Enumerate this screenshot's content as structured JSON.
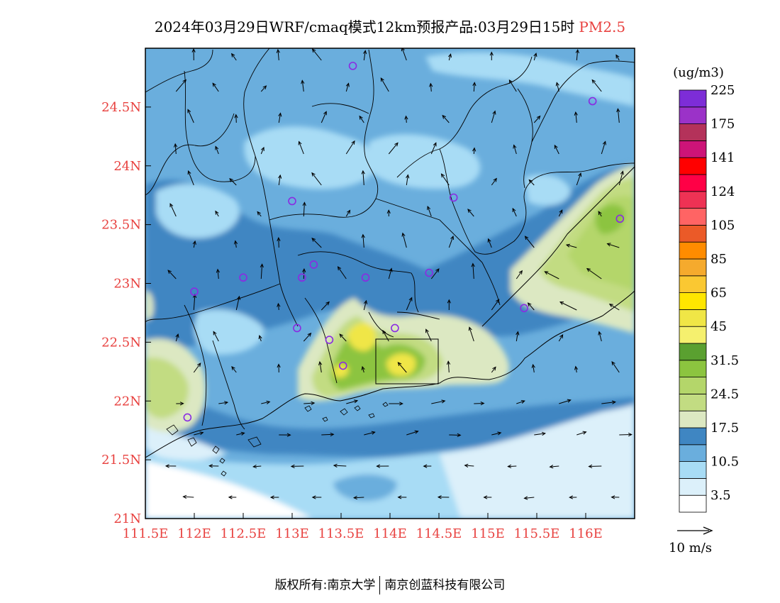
{
  "title": {
    "main": "2024年03月29日WRF/cmaq模式12km预报产品:03月29日15时",
    "pollutant": "PM2.5"
  },
  "footer": {
    "left": "版权所有:南京大学",
    "right": "南京创蓝科技有限公司"
  },
  "map": {
    "lon_range": [
      111.5,
      116.5
    ],
    "lat_range": [
      21,
      25
    ],
    "lon_ticks": [
      "111.5E",
      "112E",
      "112.5E",
      "113E",
      "113.5E",
      "114E",
      "114.5E",
      "115E",
      "115.5E",
      "116E"
    ],
    "lat_ticks": [
      "21N",
      "21.5N",
      "22N",
      "22.5N",
      "23N",
      "23.5N",
      "24N",
      "24.5N"
    ],
    "monitoring_stations": [
      {
        "lon": 113.62,
        "lat": 24.85
      },
      {
        "lon": 116.07,
        "lat": 24.55
      },
      {
        "lon": 113.0,
        "lat": 23.7
      },
      {
        "lon": 114.65,
        "lat": 23.73
      },
      {
        "lon": 116.35,
        "lat": 23.55
      },
      {
        "lon": 112.5,
        "lat": 23.05
      },
      {
        "lon": 113.1,
        "lat": 23.05
      },
      {
        "lon": 113.22,
        "lat": 23.16
      },
      {
        "lon": 113.75,
        "lat": 23.05
      },
      {
        "lon": 114.4,
        "lat": 23.09
      },
      {
        "lon": 112.0,
        "lat": 22.93
      },
      {
        "lon": 115.37,
        "lat": 22.79
      },
      {
        "lon": 113.05,
        "lat": 22.62
      },
      {
        "lon": 113.38,
        "lat": 22.52
      },
      {
        "lon": 114.05,
        "lat": 22.62
      },
      {
        "lon": 113.52,
        "lat": 22.3
      },
      {
        "lon": 111.93,
        "lat": 21.86
      }
    ]
  },
  "colorbar": {
    "unit": "(ug/m3)",
    "colors": [
      "#ffffff",
      "#dcf0fa",
      "#a8dcf5",
      "#6aaedd",
      "#3f86c2",
      "#dce8c2",
      "#c2dc82",
      "#b4d66a",
      "#8cc43f",
      "#5aa030",
      "#f5f06e",
      "#f0e646",
      "#ffe600",
      "#fac832",
      "#f5aa2d",
      "#ff8c00",
      "#eb5a28",
      "#ff6464",
      "#ee3254",
      "#ff0046",
      "#ff0000",
      "#cd1478",
      "#b4325a",
      "#9b32c8",
      "#7d2dd7"
    ],
    "labels": [
      "3.5",
      "10.5",
      "17.5",
      "24.5",
      "31.5",
      "45",
      "65",
      "85",
      "105",
      "124",
      "141",
      "175",
      "225"
    ]
  },
  "wind_legend": {
    "label": "10 m/s"
  }
}
